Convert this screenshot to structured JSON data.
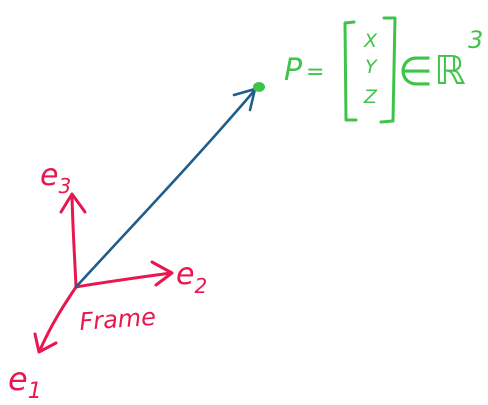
{
  "colors": {
    "frame": "#e8174f",
    "vector": "#1f5d8a",
    "point": "#3fc44a"
  },
  "frame": {
    "axis_e1": {
      "base": "e",
      "sub": "1"
    },
    "axis_e2": {
      "base": "e",
      "sub": "2"
    },
    "axis_e3": {
      "base": "e",
      "sub": "3"
    },
    "label": "Frame"
  },
  "point": {
    "name": "P",
    "equals": "=",
    "vector_entries": [
      "X",
      "Y",
      "Z"
    ],
    "member_of": "∈",
    "space": "ℝ",
    "space_exponent": "3"
  }
}
